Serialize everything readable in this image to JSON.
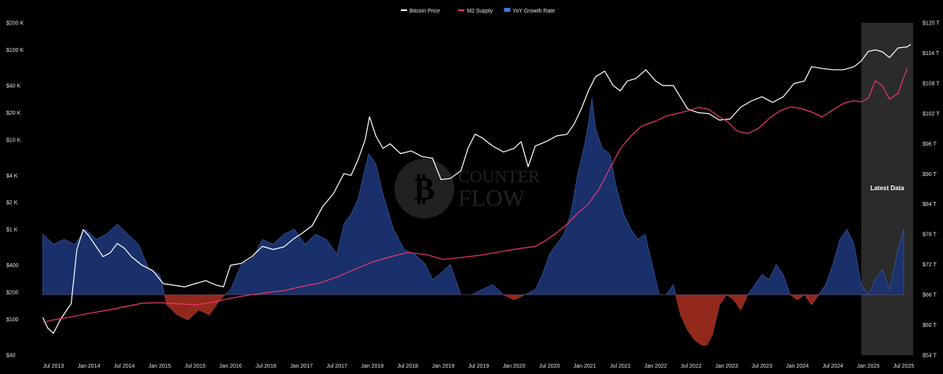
{
  "chart_data": {
    "type": "line",
    "title": "",
    "legend": [
      {
        "name": "Bitcoin Price",
        "color": "#ffffff",
        "icon": "line"
      },
      {
        "name": "M2 Supply",
        "color": "#e8386e",
        "icon": "line"
      },
      {
        "name": "YoY Growth Rate",
        "color": "#3a7bd5",
        "icon": "area"
      }
    ],
    "legend_position": "top-center",
    "grid": false,
    "x_tick_labels": [
      "Jul 2013",
      "Jan 2014",
      "Jul 2014",
      "Jan 2015",
      "Jul 2015",
      "Jan 2016",
      "Jul 2016",
      "Jan 2017",
      "Jul 2017",
      "Jan 2018",
      "Jul 2018",
      "Jan 2019",
      "Jul 2019",
      "Jan 2020",
      "Jul 2020",
      "Jan 2021",
      "Jul 2021",
      "Jan 2022",
      "Jul 2022",
      "Jan 2023",
      "Jul 2023",
      "Jan 2024",
      "Jul 2024",
      "Jan 2025",
      "Jul 2025"
    ],
    "x_tick_values": [
      2013.5,
      2014.0,
      2014.5,
      2015.0,
      2015.5,
      2016.0,
      2016.5,
      2017.0,
      2017.5,
      2018.0,
      2018.5,
      2019.0,
      2019.5,
      2020.0,
      2020.5,
      2021.0,
      2021.5,
      2022.0,
      2022.5,
      2023.0,
      2023.5,
      2024.0,
      2024.5,
      2025.0,
      2025.5
    ],
    "xlim": [
      2013.3,
      2025.7
    ],
    "y_left": {
      "label": "",
      "scale": "log",
      "ticks": [
        200000,
        100000,
        40000,
        20000,
        10000,
        4000,
        2000,
        1000,
        400,
        200,
        100,
        40
      ],
      "tick_labels": [
        "$200 K",
        "$100 K",
        "$40 K",
        "$20 K",
        "$10 K",
        "$4 K",
        "$2 K",
        "$1 K",
        "$400",
        "$200",
        "$100",
        "$40"
      ],
      "ylim": [
        40,
        200000
      ]
    },
    "y_right": {
      "label": "",
      "scale": "linear",
      "ticks": [
        120,
        114,
        108,
        102,
        96,
        90,
        84,
        78,
        72,
        66,
        60,
        54
      ],
      "tick_labels": [
        "$120 T",
        "$114 T",
        "$108 T",
        "$102 T",
        "$96 T",
        "$90 T",
        "$84 T",
        "$78 T",
        "$72 T",
        "$66 T",
        "$60 T",
        "$54 T"
      ],
      "ylim": [
        54,
        120
      ]
    },
    "series": [
      {
        "name": "Bitcoin Price",
        "axis": "left",
        "color": "#ffffff",
        "x": [
          2013.35,
          2013.42,
          2013.5,
          2013.6,
          2013.75,
          2013.83,
          2013.92,
          2014.0,
          2014.1,
          2014.2,
          2014.3,
          2014.4,
          2014.5,
          2014.6,
          2014.75,
          2014.9,
          2015.05,
          2015.2,
          2015.35,
          2015.5,
          2015.65,
          2015.8,
          2015.9,
          2016.0,
          2016.15,
          2016.3,
          2016.45,
          2016.6,
          2016.75,
          2016.9,
          2017.0,
          2017.15,
          2017.3,
          2017.45,
          2017.6,
          2017.7,
          2017.8,
          2017.9,
          2017.96,
          2018.05,
          2018.15,
          2018.25,
          2018.4,
          2018.55,
          2018.7,
          2018.85,
          2018.97,
          2019.1,
          2019.25,
          2019.35,
          2019.45,
          2019.55,
          2019.7,
          2019.85,
          2020.0,
          2020.1,
          2020.2,
          2020.3,
          2020.45,
          2020.6,
          2020.75,
          2020.85,
          2020.95,
          2021.05,
          2021.15,
          2021.28,
          2021.4,
          2021.5,
          2021.6,
          2021.72,
          2021.86,
          2022.0,
          2022.1,
          2022.25,
          2022.45,
          2022.6,
          2022.75,
          2022.9,
          2023.05,
          2023.2,
          2023.35,
          2023.5,
          2023.65,
          2023.8,
          2023.95,
          2024.1,
          2024.2,
          2024.35,
          2024.5,
          2024.65,
          2024.8,
          2024.9,
          2025.0,
          2025.1,
          2025.2,
          2025.3,
          2025.42,
          2025.55,
          2025.6
        ],
        "values": [
          105,
          80,
          70,
          100,
          150,
          600,
          1000,
          850,
          650,
          500,
          550,
          700,
          620,
          500,
          400,
          350,
          250,
          240,
          230,
          250,
          270,
          240,
          230,
          400,
          420,
          500,
          650,
          600,
          640,
          800,
          900,
          1100,
          1800,
          2500,
          4200,
          4000,
          6000,
          10000,
          18000,
          11000,
          8000,
          9000,
          7000,
          7500,
          6500,
          6200,
          3600,
          3700,
          4500,
          8000,
          11500,
          10500,
          8500,
          7300,
          8000,
          9500,
          5000,
          8500,
          9500,
          11000,
          11500,
          15000,
          22000,
          35000,
          50000,
          58000,
          40000,
          35000,
          45000,
          48000,
          60000,
          45000,
          40000,
          40000,
          22000,
          20000,
          19500,
          16500,
          17000,
          23000,
          27000,
          30000,
          26000,
          30000,
          42000,
          45000,
          65000,
          62000,
          60000,
          60000,
          65000,
          75000,
          96000,
          100000,
          95000,
          82000,
          105000,
          108000,
          115000
        ]
      },
      {
        "name": "M2 Supply",
        "axis": "right",
        "color": "#e8386e",
        "x": [
          2013.35,
          2013.5,
          2013.75,
          2014.0,
          2014.25,
          2014.5,
          2014.75,
          2015.0,
          2015.25,
          2015.5,
          2015.75,
          2016.0,
          2016.25,
          2016.5,
          2016.75,
          2017.0,
          2017.25,
          2017.5,
          2017.75,
          2018.0,
          2018.25,
          2018.5,
          2018.75,
          2019.0,
          2019.25,
          2019.5,
          2019.75,
          2020.0,
          2020.15,
          2020.3,
          2020.45,
          2020.6,
          2020.75,
          2020.9,
          2021.05,
          2021.2,
          2021.35,
          2021.5,
          2021.65,
          2021.8,
          2022.0,
          2022.15,
          2022.3,
          2022.45,
          2022.6,
          2022.75,
          2022.9,
          2023.0,
          2023.15,
          2023.3,
          2023.45,
          2023.6,
          2023.75,
          2023.9,
          2024.05,
          2024.2,
          2024.35,
          2024.5,
          2024.65,
          2024.8,
          2024.9,
          2025.0,
          2025.1,
          2025.2,
          2025.3,
          2025.42,
          2025.55
        ],
        "values": [
          60.5,
          61.0,
          61.6,
          62.3,
          62.9,
          63.6,
          64.3,
          64.4,
          64.2,
          64.0,
          64.5,
          65.3,
          65.9,
          66.4,
          66.8,
          67.6,
          68.3,
          69.5,
          71.0,
          72.5,
          73.5,
          74.4,
          74.0,
          73.0,
          73.4,
          73.8,
          74.4,
          75.0,
          75.3,
          75.6,
          76.8,
          78.3,
          80.0,
          82.2,
          84.0,
          87.0,
          91.0,
          95.0,
          97.5,
          99.5,
          100.5,
          101.5,
          102.0,
          102.5,
          103.2,
          102.8,
          101.3,
          100.5,
          98.5,
          98.0,
          99.0,
          101.0,
          102.5,
          103.3,
          103.0,
          102.3,
          101.3,
          102.7,
          104.0,
          104.5,
          104.3,
          105.0,
          108.5,
          107.5,
          104.8,
          106.0,
          111.0
        ]
      },
      {
        "name": "YoY Growth Rate",
        "axis": "right",
        "type": "area",
        "baseline": 66,
        "positive_color": "#1a3370",
        "negative_color": "#9a2a1e",
        "x": [
          2013.35,
          2013.5,
          2013.65,
          2013.8,
          2013.95,
          2014.1,
          2014.25,
          2014.4,
          2014.55,
          2014.7,
          2014.85,
          2015.0,
          2015.1,
          2015.25,
          2015.4,
          2015.55,
          2015.7,
          2015.85,
          2016.0,
          2016.15,
          2016.3,
          2016.45,
          2016.6,
          2016.75,
          2016.9,
          2017.05,
          2017.2,
          2017.35,
          2017.5,
          2017.6,
          2017.7,
          2017.8,
          2017.88,
          2017.95,
          2018.05,
          2018.15,
          2018.3,
          2018.45,
          2018.6,
          2018.75,
          2018.85,
          2018.95,
          2019.1,
          2019.25,
          2019.4,
          2019.55,
          2019.7,
          2019.85,
          2020.0,
          2020.15,
          2020.3,
          2020.4,
          2020.5,
          2020.6,
          2020.7,
          2020.8,
          2020.9,
          2021.0,
          2021.05,
          2021.1,
          2021.15,
          2021.25,
          2021.35,
          2021.45,
          2021.55,
          2021.65,
          2021.75,
          2021.85,
          2021.95,
          2022.05,
          2022.15,
          2022.25,
          2022.35,
          2022.45,
          2022.55,
          2022.65,
          2022.72,
          2022.8,
          2022.9,
          2023.0,
          2023.1,
          2023.2,
          2023.3,
          2023.4,
          2023.5,
          2023.6,
          2023.7,
          2023.8,
          2023.9,
          2024.0,
          2024.1,
          2024.2,
          2024.3,
          2024.4,
          2024.5,
          2024.6,
          2024.7,
          2024.8,
          2024.9,
          2025.0,
          2025.1,
          2025.2,
          2025.3,
          2025.42,
          2025.5
        ],
        "values": [
          78,
          76,
          77,
          76,
          79,
          77,
          78,
          80,
          78,
          76,
          71,
          70,
          64,
          62,
          61,
          63,
          62,
          65,
          67,
          72,
          73,
          77,
          76,
          78,
          79,
          76,
          78,
          77,
          74,
          80,
          82,
          85,
          90,
          94,
          92,
          86,
          79,
          75,
          74,
          72,
          69,
          70,
          72,
          66,
          66,
          67,
          68,
          66,
          65,
          66,
          67,
          70,
          74,
          76,
          78,
          82,
          90,
          96,
          100,
          105,
          99,
          95,
          94,
          87,
          82,
          79,
          77,
          78,
          72,
          66,
          66,
          68,
          62,
          59,
          57,
          56,
          56,
          58,
          64,
          66,
          65,
          63,
          66,
          68,
          70,
          69,
          72,
          70,
          66,
          65,
          66,
          64,
          66,
          68,
          72,
          77,
          79,
          76,
          68,
          66,
          69,
          71,
          67,
          75,
          79
        ]
      }
    ],
    "annotations": [
      {
        "text": "Latest Data",
        "region": [
          2024.92,
          2025.39
        ]
      }
    ],
    "watermark": "COUNTERFLOW"
  }
}
